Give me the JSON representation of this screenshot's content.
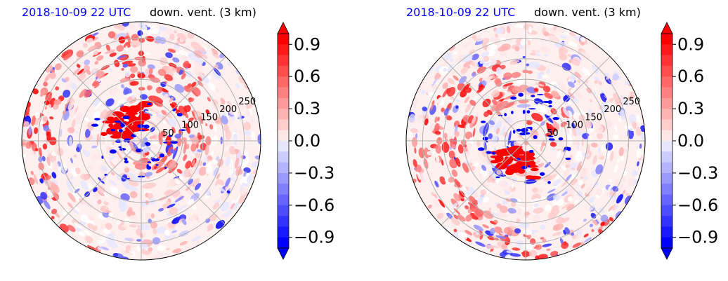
{
  "chart_data": [
    {
      "type": "heatmap",
      "projection": "polar",
      "title_left": "2018-10-09 22 UTC",
      "title_right": "down. vent. (3 km)",
      "radial_ticks": [
        "50",
        "100",
        "150",
        "200",
        "250"
      ],
      "radial_values": [
        50,
        100,
        150,
        200,
        250
      ],
      "colorbar": {
        "ticks": [
          "0.9",
          "0.6",
          "0.3",
          "0.0",
          "−0.3",
          "−0.6",
          "−0.9"
        ],
        "tick_values": [
          0.9,
          0.6,
          0.3,
          0.0,
          -0.3,
          -0.6,
          -0.9
        ],
        "vmin": -1.0,
        "vmax": 1.0,
        "extend": "both",
        "cmap": "bwr"
      },
      "colors": {
        "neg": "#0000ff",
        "mid": "#ffffff",
        "pos": "#ff0000"
      }
    },
    {
      "type": "heatmap",
      "projection": "polar",
      "title_left": "2018-10-09 22 UTC",
      "title_right": "down. vent. (3 km)",
      "radial_ticks": [
        "50",
        "100",
        "150",
        "200",
        "250"
      ],
      "radial_values": [
        50,
        100,
        150,
        200,
        250
      ],
      "colorbar": {
        "ticks": [
          "0.9",
          "0.6",
          "0.3",
          "0.0",
          "−0.3",
          "−0.6",
          "−0.9"
        ],
        "tick_values": [
          0.9,
          0.6,
          0.3,
          0.0,
          -0.3,
          -0.6,
          -0.9
        ],
        "vmin": -1.0,
        "vmax": 1.0,
        "extend": "both",
        "cmap": "bwr"
      },
      "colors": {
        "neg": "#0000ff",
        "mid": "#ffffff",
        "pos": "#ff0000"
      }
    }
  ]
}
